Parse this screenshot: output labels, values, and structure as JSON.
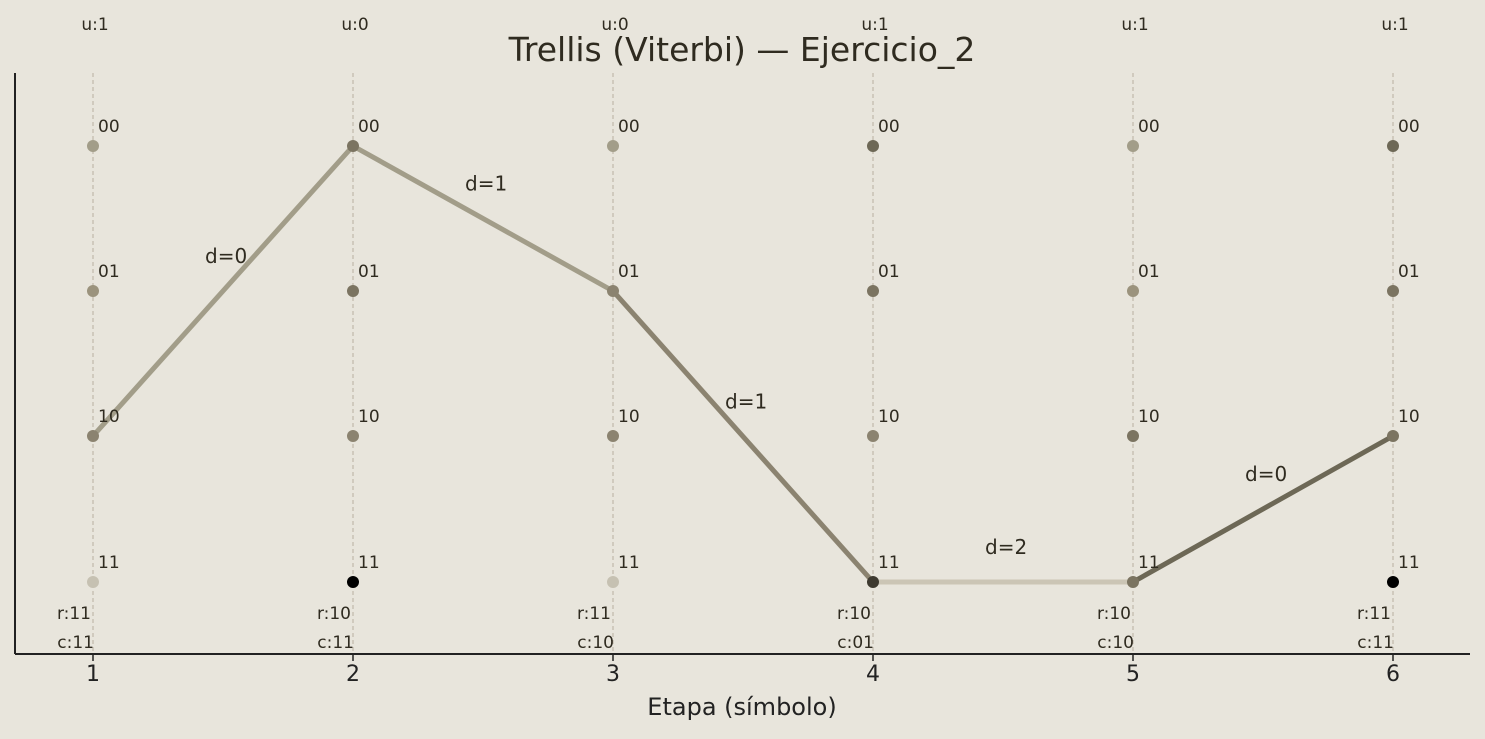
{
  "title": "Trellis (Viterbi) — Ejercicio_2",
  "xlabel": "Etapa (símbolo)",
  "colors": {
    "background": "#e8e5dc",
    "text": "#2f2b20",
    "axis": "#222222",
    "gridline": "#b7ae9f"
  },
  "chart_data": {
    "type": "trellis",
    "title": "Trellis (Viterbi) — Ejercicio_2",
    "xlabel": "Etapa (símbolo)",
    "states": [
      "00",
      "01",
      "10",
      "11"
    ],
    "stages": [
      {
        "x": 1,
        "tick": "1",
        "u": "u:1",
        "r": "r:11",
        "c": "c:11"
      },
      {
        "x": 2,
        "tick": "2",
        "u": "u:0",
        "r": "r:10",
        "c": "c:11"
      },
      {
        "x": 3,
        "tick": "3",
        "u": "u:0",
        "r": "r:11",
        "c": "c:10"
      },
      {
        "x": 4,
        "tick": "4",
        "u": "u:1",
        "r": "r:10",
        "c": "c:01"
      },
      {
        "x": 5,
        "tick": "5",
        "u": "u:1",
        "r": "r:10",
        "c": "c:10"
      },
      {
        "x": 6,
        "tick": "6",
        "u": "u:1",
        "r": "r:11",
        "c": "c:11"
      }
    ],
    "node_colors": [
      [
        "#a29d89",
        "#9b937d",
        "#8b8370",
        "#c6c1b2"
      ],
      [
        "#7b7461",
        "#7b7461",
        "#8b8370",
        "#000000"
      ],
      [
        "#a29d89",
        "#8b8370",
        "#8b8370",
        "#c6c1b2"
      ],
      [
        "#6d6856",
        "#7b7461",
        "#8b8370",
        "#3e3a30"
      ],
      [
        "#a29d89",
        "#9b937d",
        "#7b7461",
        "#7b7461"
      ],
      [
        "#6d6856",
        "#7b7461",
        "#7b7461",
        "#000000"
      ]
    ],
    "path": [
      {
        "from_stage": 1,
        "from_state": "10",
        "to_stage": 2,
        "to_state": "00",
        "label": "d=0",
        "color": "#a29d89"
      },
      {
        "from_stage": 2,
        "from_state": "00",
        "to_stage": 3,
        "to_state": "01",
        "label": "d=1",
        "color": "#a29d89"
      },
      {
        "from_stage": 3,
        "from_state": "01",
        "to_stage": 4,
        "to_state": "11",
        "label": "d=1",
        "color": "#8b8370"
      },
      {
        "from_stage": 4,
        "from_state": "11",
        "to_stage": 5,
        "to_state": "11",
        "label": "d=2",
        "color": "#cbc5b5"
      },
      {
        "from_stage": 5,
        "from_state": "11",
        "to_stage": 6,
        "to_state": "10",
        "label": "d=0",
        "color": "#6d6856"
      }
    ],
    "xlim": [
      0.7,
      6.3
    ]
  }
}
